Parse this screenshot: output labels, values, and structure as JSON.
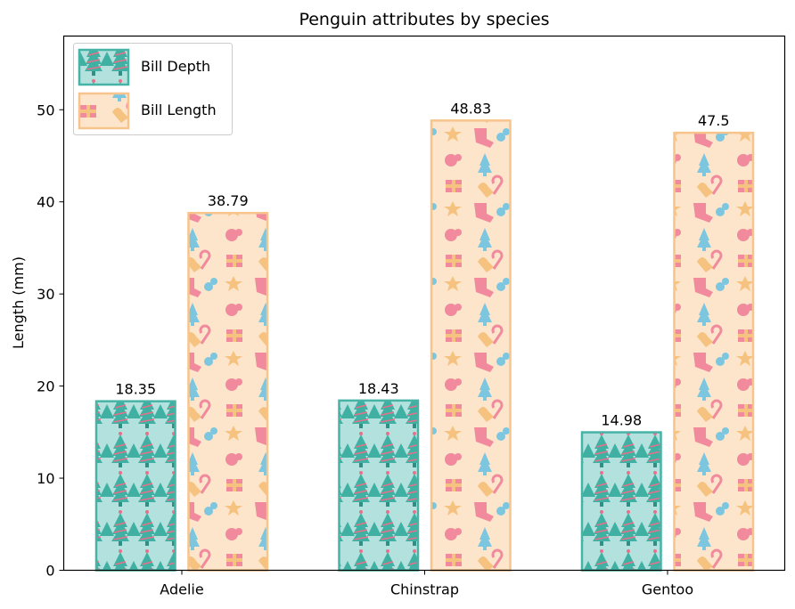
{
  "chart_data": {
    "type": "bar",
    "title": "Penguin attributes by species",
    "xlabel": "",
    "ylabel": "Length (mm)",
    "ylim": [
      0,
      58
    ],
    "yticks": [
      0,
      10,
      20,
      30,
      40,
      50
    ],
    "categories": [
      "Adelie",
      "Chinstrap",
      "Gentoo"
    ],
    "series": [
      {
        "name": "Bill Depth",
        "values": [
          18.35,
          18.43,
          14.98
        ],
        "labels": [
          "18.35",
          "18.43",
          "14.98"
        ],
        "fill": "#b3e2de",
        "edge": "#46b3a6",
        "pattern": "tree"
      },
      {
        "name": "Bill Length",
        "values": [
          38.79,
          48.83,
          47.5
        ],
        "labels": [
          "38.79",
          "48.83",
          "47.5"
        ],
        "fill": "#fde5cc",
        "edge": "#f7c48c",
        "pattern": "gifts"
      }
    ],
    "legend": "upper-left",
    "grid": false
  }
}
